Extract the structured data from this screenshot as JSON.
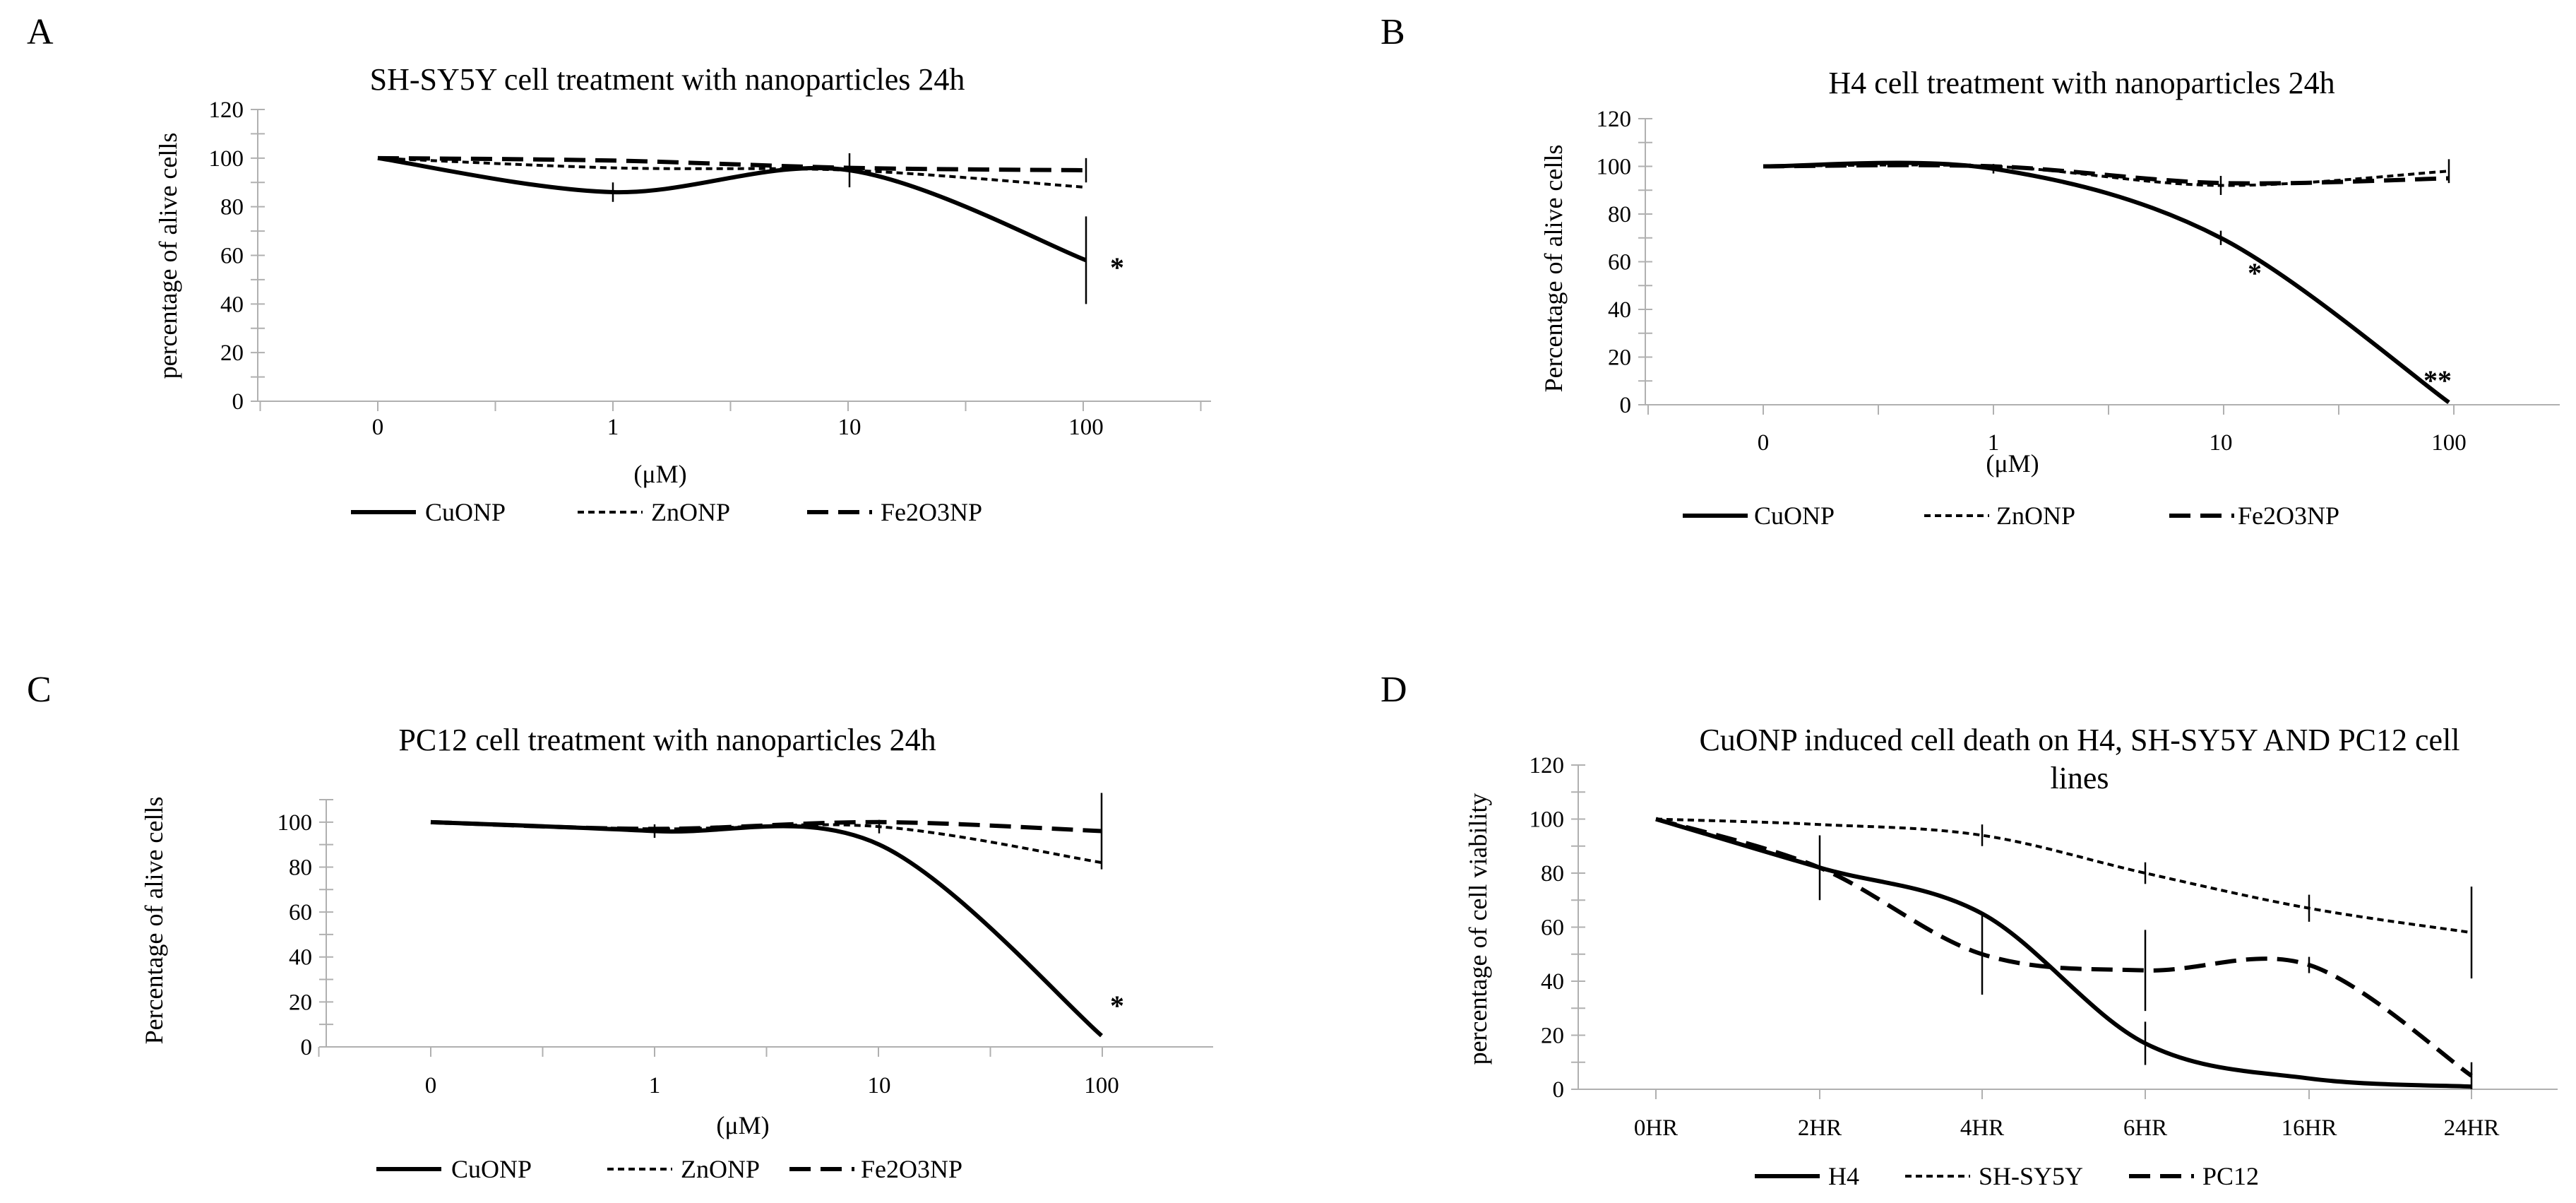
{
  "chart_data": [
    {
      "panel": "A",
      "type": "line",
      "title": "SH-SY5Y cell treatment with nanoparticles 24h",
      "xlabel": "(μM)",
      "ylabel": "percentage of alive cells",
      "categories": [
        "0",
        "1",
        "10",
        "100"
      ],
      "ylim": [
        0,
        120
      ],
      "yticks": [
        0,
        10,
        20,
        30,
        40,
        50,
        60,
        70,
        80,
        90,
        100,
        110,
        120
      ],
      "ytick_labels": [
        "0",
        "20",
        "40",
        "60",
        "80",
        "100",
        "120"
      ],
      "series": [
        {
          "name": "CuONP",
          "style": "solid",
          "values": [
            100,
            86,
            95,
            58
          ],
          "error": [
            null,
            4,
            7,
            18
          ]
        },
        {
          "name": "ZnONP",
          "style": "dotted",
          "values": [
            100,
            96,
            95,
            88
          ],
          "error": [
            null,
            null,
            null,
            null
          ]
        },
        {
          "name": "Fe2O3NP",
          "style": "dashed",
          "values": [
            100,
            99,
            96,
            95
          ],
          "error": [
            null,
            null,
            null,
            5
          ]
        }
      ],
      "annotations": [
        {
          "text": "*",
          "category": "100"
        }
      ]
    },
    {
      "panel": "B",
      "type": "line",
      "title": "H4 cell treatment with nanoparticles 24h",
      "xlabel": "(μM)",
      "ylabel": "Percentage of alive cells",
      "categories": [
        "0",
        "1",
        "10",
        "100"
      ],
      "ylim": [
        0,
        120
      ],
      "yticks": [
        0,
        10,
        20,
        30,
        40,
        50,
        60,
        70,
        80,
        90,
        100,
        110,
        120
      ],
      "ytick_labels": [
        "0",
        "20",
        "40",
        "60",
        "80",
        "100",
        "120"
      ],
      "series": [
        {
          "name": "CuONP",
          "style": "solid",
          "values": [
            100,
            99,
            70,
            1
          ],
          "error": [
            null,
            2,
            3,
            null
          ]
        },
        {
          "name": "ZnONP",
          "style": "dotted",
          "values": [
            100,
            100,
            92,
            98
          ],
          "error": [
            null,
            null,
            4,
            5
          ]
        },
        {
          "name": "Fe2O3NP",
          "style": "dashed",
          "values": [
            100,
            100,
            93,
            95
          ],
          "error": [
            null,
            null,
            null,
            null
          ]
        }
      ],
      "annotations": [
        {
          "text": "*",
          "category": "10"
        },
        {
          "text": "**",
          "category": "100"
        }
      ]
    },
    {
      "panel": "C",
      "type": "line",
      "title": "PC12 cell treatment with nanoparticles 24h",
      "xlabel": "(μM)",
      "ylabel": "Percentage of alive cells",
      "categories": [
        "0",
        "1",
        "10",
        "100"
      ],
      "ylim": [
        0,
        110
      ],
      "yticks": [
        0,
        10,
        20,
        30,
        40,
        50,
        60,
        70,
        80,
        90,
        100,
        110
      ],
      "ytick_labels": [
        "0",
        "20",
        "40",
        "60",
        "80",
        "100"
      ],
      "series": [
        {
          "name": "CuONP",
          "style": "solid",
          "values": [
            100,
            96,
            90,
            5
          ],
          "error": [
            null,
            3,
            null,
            null
          ]
        },
        {
          "name": "ZnONP",
          "style": "dotted",
          "values": [
            100,
            97,
            98,
            82
          ],
          "error": [
            null,
            null,
            3,
            null
          ]
        },
        {
          "name": "Fe2O3NP",
          "style": "dashed",
          "values": [
            100,
            97,
            100,
            96
          ],
          "error": [
            null,
            null,
            null,
            17
          ]
        }
      ],
      "annotations": [
        {
          "text": "*",
          "category": "100"
        }
      ]
    },
    {
      "panel": "D",
      "type": "line",
      "title": "CuONP induced cell death on H4, SH-SY5Y AND PC12 cell lines",
      "title_lines": [
        "CuONP induced cell death on H4, SH-SY5Y AND PC12 cell",
        "lines"
      ],
      "xlabel": "",
      "ylabel": "percentage of cell viability",
      "categories": [
        "0HR",
        "2HR",
        "4HR",
        "6HR",
        "16HR",
        "24HR"
      ],
      "ylim": [
        0,
        120
      ],
      "yticks": [
        0,
        10,
        20,
        30,
        40,
        50,
        60,
        70,
        80,
        90,
        100,
        110,
        120
      ],
      "ytick_labels": [
        "0",
        "20",
        "40",
        "60",
        "80",
        "100",
        "120"
      ],
      "series": [
        {
          "name": "H4",
          "style": "solid",
          "values": [
            100,
            82,
            65,
            17,
            4,
            1
          ],
          "error": [
            null,
            null,
            null,
            8,
            null,
            null
          ]
        },
        {
          "name": "SH-SY5Y",
          "style": "dotted",
          "values": [
            100,
            98,
            94,
            80,
            67,
            58
          ],
          "error": [
            null,
            null,
            4,
            4,
            5,
            17
          ]
        },
        {
          "name": "PC12",
          "style": "dashed",
          "values": [
            100,
            82,
            50,
            44,
            46,
            5
          ],
          "error": [
            null,
            12,
            15,
            15,
            3,
            5
          ]
        }
      ],
      "annotations": []
    }
  ]
}
